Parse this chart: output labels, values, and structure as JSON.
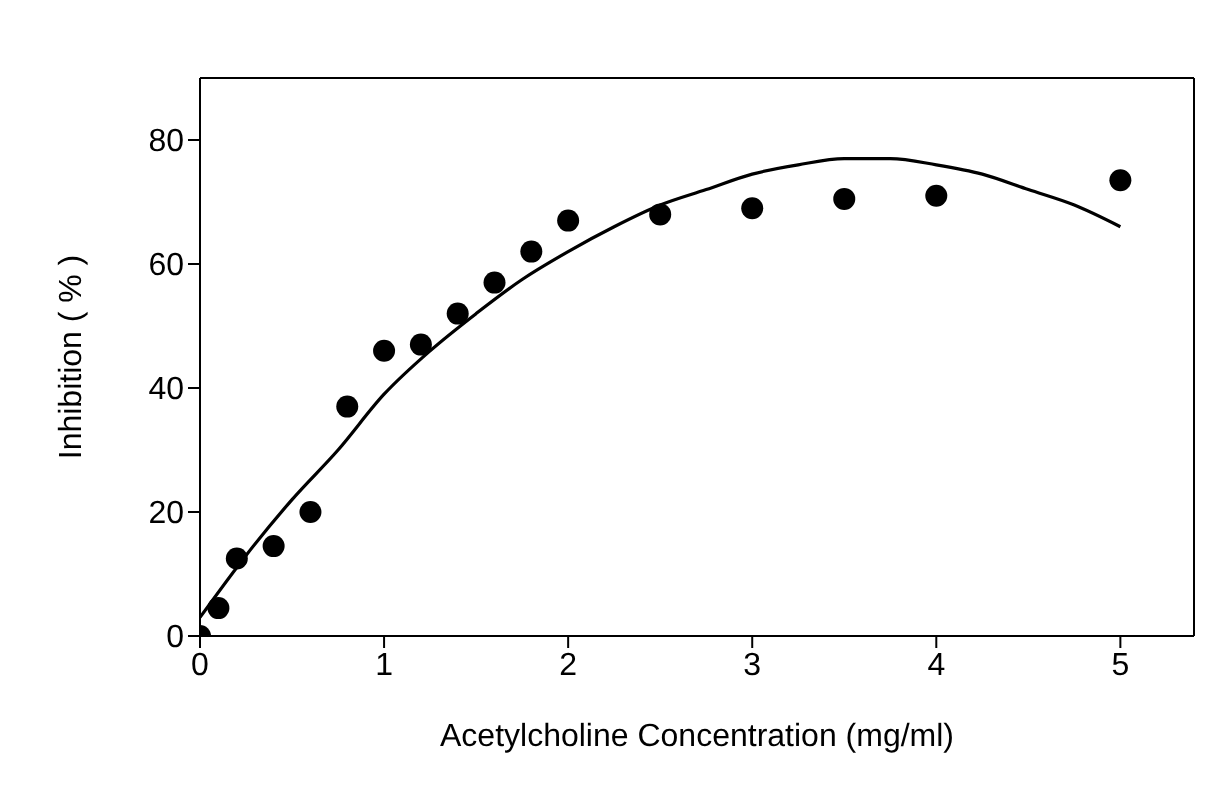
{
  "chart_data": {
    "type": "scatter",
    "xlabel": "Acetylcholine Concentration (mg/ml)",
    "ylabel": "Inhibition ( % )",
    "xlim": [
      0,
      5.4
    ],
    "xticks": [
      0,
      1,
      2,
      3,
      4,
      5
    ],
    "ylim": [
      0,
      90
    ],
    "yticks": [
      0,
      20,
      40,
      60,
      80
    ],
    "legend": false,
    "series": [
      {
        "color": "#000000",
        "marker": "circle",
        "x": [
          0,
          0.1,
          0.2,
          0.4,
          0.6,
          0.8,
          1.0,
          1.2,
          1.4,
          1.6,
          1.8,
          2.0,
          2.5,
          3.0,
          3.5,
          4.0,
          5.0
        ],
        "values": [
          0,
          4.5,
          12.5,
          14.5,
          20,
          37,
          46,
          47,
          52,
          57,
          62,
          67,
          68,
          69,
          70.5,
          71,
          73.5
        ]
      },
      {
        "type": "line",
        "color": "#000000",
        "marker": "none",
        "line_style": "solid",
        "x": [
          0,
          0.25,
          0.5,
          0.75,
          1,
          1.25,
          1.5,
          1.75,
          2,
          2.25,
          2.5,
          2.75,
          3,
          3.25,
          3.5,
          3.75,
          4,
          4.25,
          4.5,
          4.75,
          5
        ],
        "values": [
          3,
          13,
          22,
          30,
          39,
          46,
          52,
          57.5,
          62,
          66,
          69.5,
          72,
          74.5,
          76,
          77,
          77,
          76,
          74.5,
          72,
          69.5,
          66
        ]
      }
    ]
  }
}
